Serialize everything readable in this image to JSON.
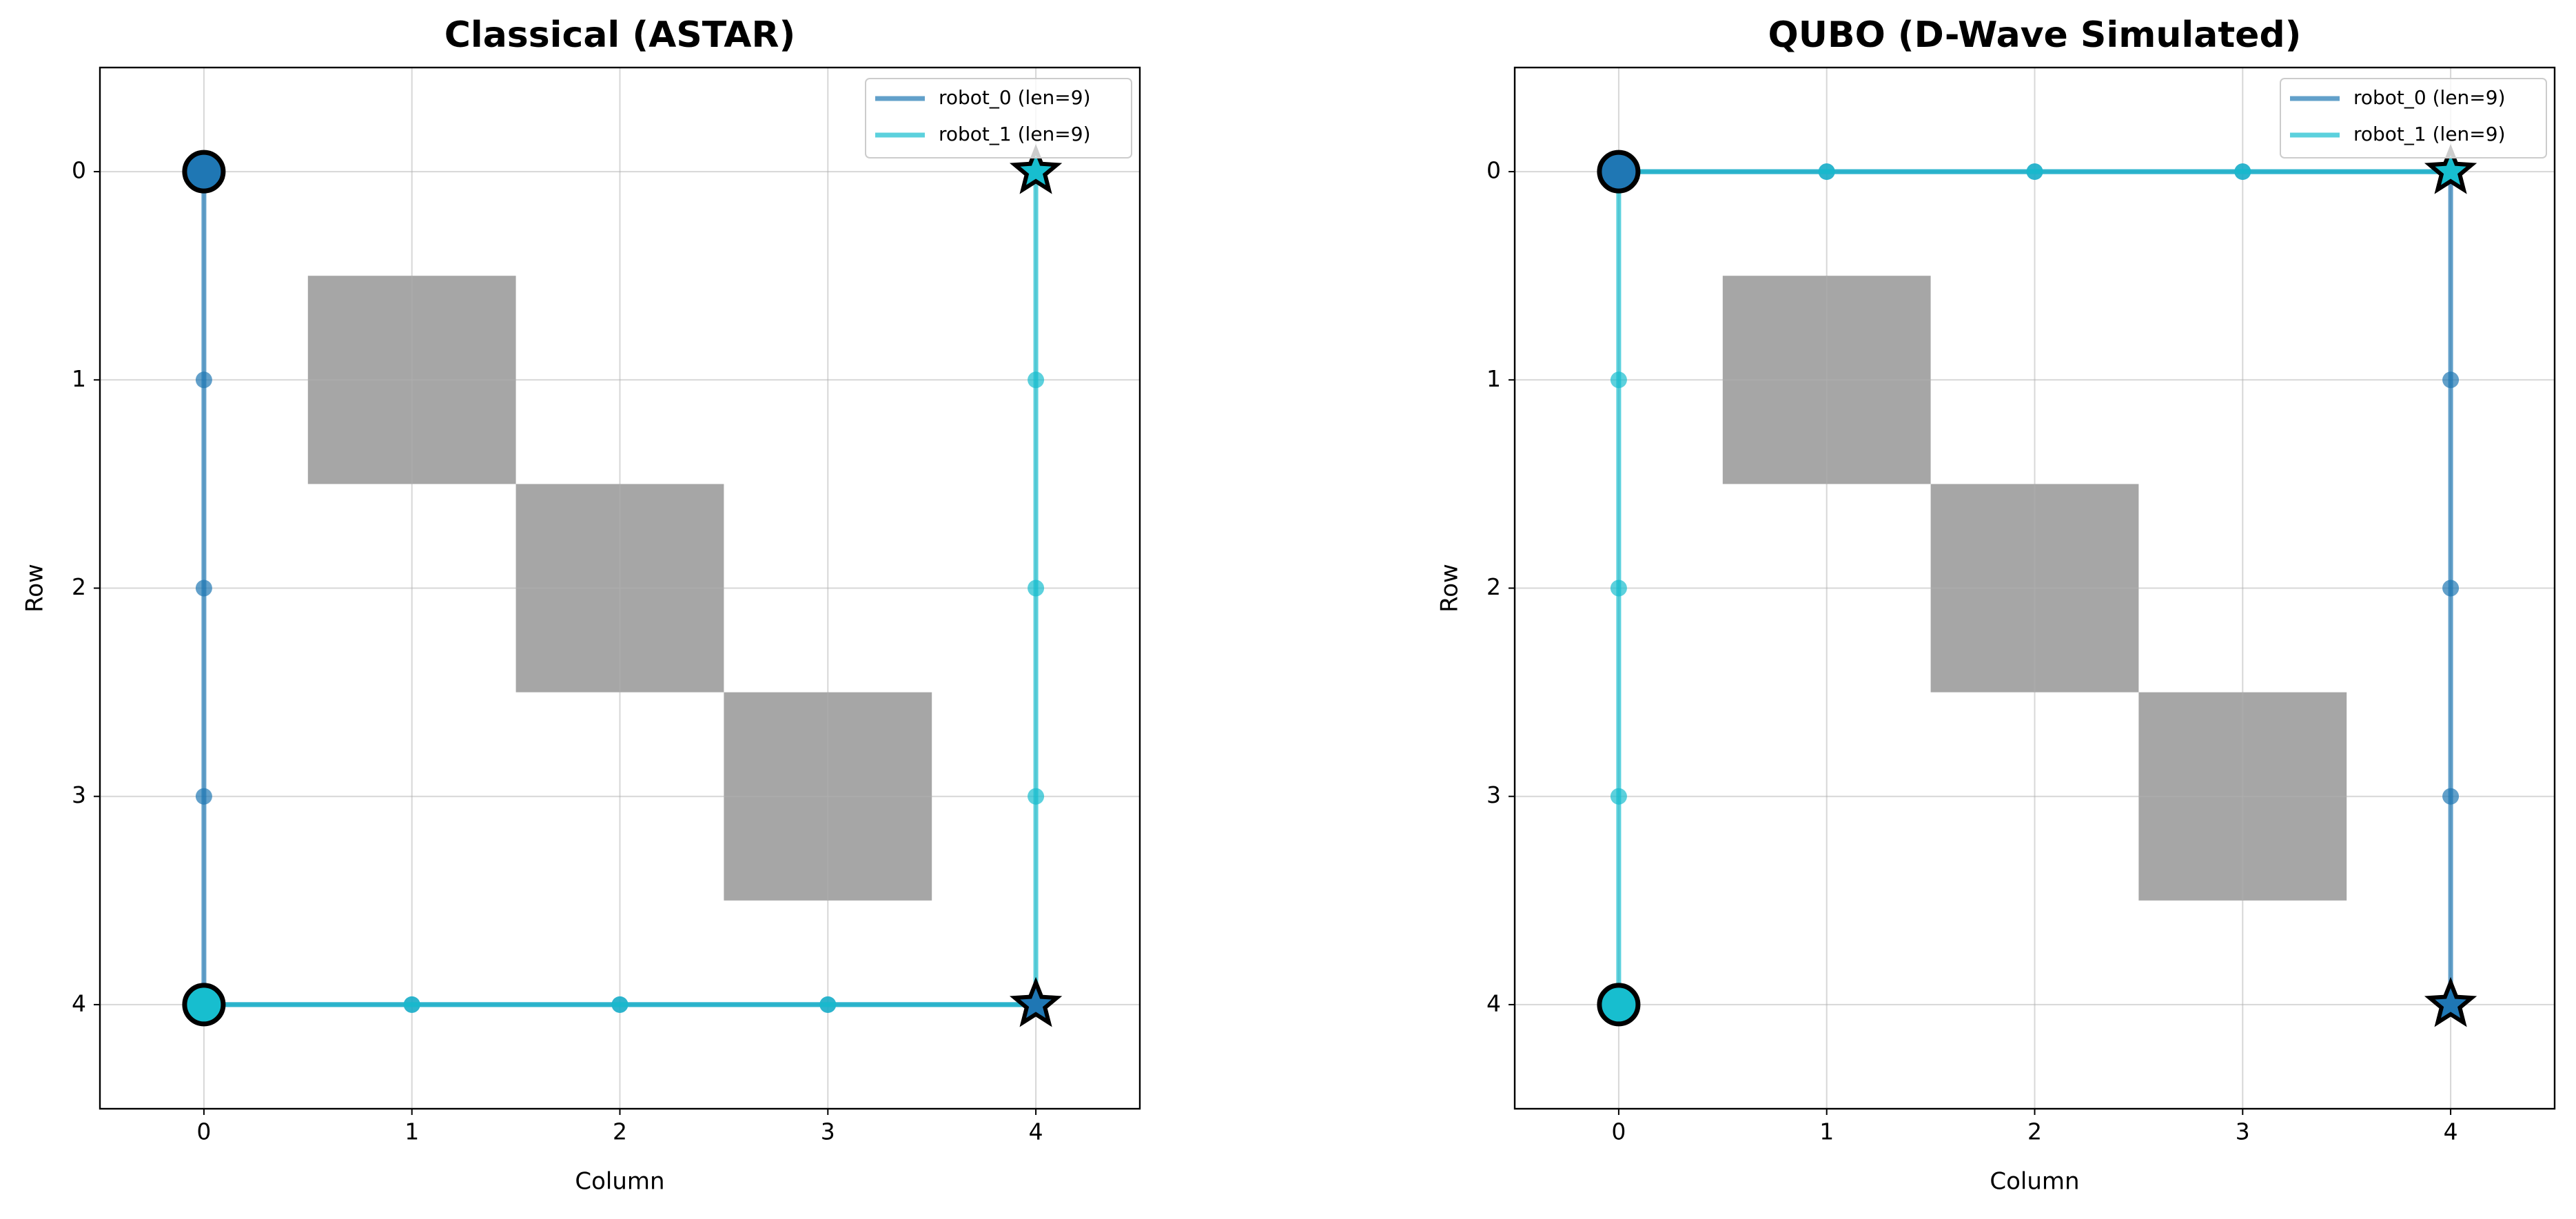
{
  "chart_data": [
    {
      "type": "grid-path",
      "title": "Classical (ASTAR)",
      "x_label": "Column",
      "y_label": "Row",
      "xlim": [
        -0.5,
        4.5
      ],
      "ylim": [
        4.5,
        -0.5
      ],
      "xticks": [
        0,
        1,
        2,
        3,
        4
      ],
      "yticks": [
        0,
        1,
        2,
        3,
        4
      ],
      "grid": true,
      "legend": "upper right",
      "obstacle_color": "#a6a6a6",
      "obstacles": [
        {
          "col": 1,
          "row": 1
        },
        {
          "col": 2,
          "row": 2
        },
        {
          "col": 3,
          "row": 3
        }
      ],
      "series": [
        {
          "name": "robot_0 (len=9)",
          "color": "#1f77b4",
          "x": [
            0,
            0,
            0,
            0,
            0,
            1,
            2,
            3,
            4
          ],
          "y": [
            0,
            1,
            2,
            3,
            4,
            4,
            4,
            4,
            4
          ]
        },
        {
          "name": "robot_1 (len=9)",
          "color": "#17becf",
          "x": [
            0,
            1,
            2,
            3,
            4,
            4,
            4,
            4,
            4
          ],
          "y": [
            4,
            4,
            4,
            4,
            4,
            3,
            2,
            1,
            0
          ]
        }
      ]
    },
    {
      "type": "grid-path",
      "title": "QUBO (D-Wave Simulated)",
      "x_label": "Column",
      "y_label": "Row",
      "xlim": [
        -0.5,
        4.5
      ],
      "ylim": [
        4.5,
        -0.5
      ],
      "xticks": [
        0,
        1,
        2,
        3,
        4
      ],
      "yticks": [
        0,
        1,
        2,
        3,
        4
      ],
      "grid": true,
      "legend": "upper right",
      "obstacle_color": "#a6a6a6",
      "obstacles": [
        {
          "col": 1,
          "row": 1
        },
        {
          "col": 2,
          "row": 2
        },
        {
          "col": 3,
          "row": 3
        }
      ],
      "series": [
        {
          "name": "robot_0 (len=9)",
          "color": "#1f77b4",
          "x": [
            0,
            1,
            2,
            3,
            4,
            4,
            4,
            4,
            4
          ],
          "y": [
            0,
            0,
            0,
            0,
            0,
            1,
            2,
            3,
            4
          ]
        },
        {
          "name": "robot_1 (len=9)",
          "color": "#17becf",
          "x": [
            0,
            0,
            0,
            0,
            0,
            1,
            2,
            3,
            4
          ],
          "y": [
            4,
            3,
            2,
            1,
            0,
            0,
            0,
            0,
            0
          ]
        }
      ]
    }
  ]
}
